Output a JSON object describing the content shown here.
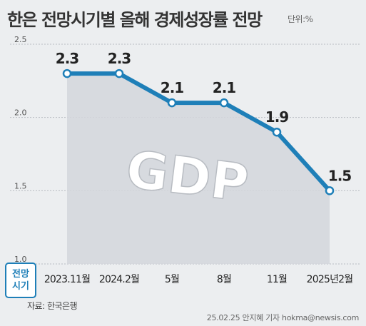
{
  "title": "한은 전망시기별 올해 경제성장률 전망",
  "unit_label": "단위:%",
  "x_axis_label": [
    "전망",
    "시기"
  ],
  "source": "자료: 한국은행",
  "credit": "25.02.25 안지혜 기자 hokma@newsis.com",
  "watermark": "GDP",
  "colors": {
    "line": "#1e7fb8",
    "area": "#d3d6dc",
    "grid": "#b8bcc2",
    "background": "#eceef0"
  },
  "chart_data": {
    "type": "area",
    "categories": [
      "2023.11월",
      "2024.2월",
      "5월",
      "8월",
      "11월",
      "2025년2월"
    ],
    "series": [
      {
        "values": [
          2.3,
          2.3,
          2.1,
          2.1,
          1.9,
          1.5
        ],
        "labels": [
          "2.3",
          "2.3",
          "2.1",
          "2.1",
          "1.9",
          "1.5"
        ]
      }
    ],
    "y_ticks": [
      1.0,
      1.5,
      2.0,
      2.5
    ],
    "y_tick_labels": [
      "1.0",
      "1.5",
      "2.0",
      "2.5"
    ],
    "ylim": [
      1.0,
      2.5
    ],
    "grid": true,
    "legend": "none"
  }
}
